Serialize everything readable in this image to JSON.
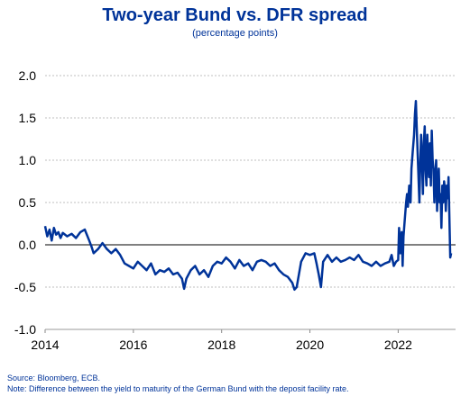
{
  "chart_data": {
    "type": "line",
    "title": "Two-year Bund vs. DFR spread",
    "subtitle": "(percentage points)",
    "xlabel": "",
    "ylabel": "",
    "xlim": [
      2014,
      2023.3
    ],
    "ylim": [
      -1.0,
      2.0
    ],
    "x_ticks": [
      2014,
      2016,
      2018,
      2020,
      2022
    ],
    "x_tick_labels": [
      "2014",
      "2016",
      "2018",
      "2020",
      "2022"
    ],
    "y_ticks": [
      2.0,
      1.5,
      1.0,
      0.5,
      0.0,
      -0.5,
      -1.0
    ],
    "y_tick_labels": [
      "2.0",
      "1.5",
      "1.0",
      "0.5",
      "0.0",
      "-0.5",
      "-1.0"
    ],
    "grid": "horizontal dashed",
    "legend": "none",
    "line_color": "#003399",
    "series": [
      {
        "x": [
          2014.0,
          2014.05,
          2014.1,
          2014.15,
          2014.2,
          2014.25,
          2014.3,
          2014.35,
          2014.4,
          2014.5,
          2014.6,
          2014.7,
          2014.8,
          2014.9,
          2015.0,
          2015.05,
          2015.1,
          2015.2,
          2015.3,
          2015.4,
          2015.5,
          2015.6,
          2015.7,
          2015.8,
          2015.9,
          2016.0,
          2016.1,
          2016.2,
          2016.3,
          2016.4,
          2016.5,
          2016.6,
          2016.7,
          2016.8,
          2016.9,
          2017.0,
          2017.1,
          2017.15,
          2017.2,
          2017.3,
          2017.4,
          2017.5,
          2017.6,
          2017.7,
          2017.8,
          2017.9,
          2018.0,
          2018.1,
          2018.2,
          2018.3,
          2018.4,
          2018.5,
          2018.6,
          2018.7,
          2018.8,
          2018.9,
          2019.0,
          2019.1,
          2019.2,
          2019.3,
          2019.4,
          2019.5,
          2019.6,
          2019.65,
          2019.7,
          2019.8,
          2019.9,
          2020.0,
          2020.1,
          2020.15,
          2020.2,
          2020.25,
          2020.3,
          2020.4,
          2020.5,
          2020.6,
          2020.7,
          2020.8,
          2020.9,
          2021.0,
          2021.1,
          2021.2,
          2021.3,
          2021.4,
          2021.5,
          2021.6,
          2021.7,
          2021.8,
          2021.85,
          2021.9,
          2021.95,
          2022.0,
          2022.02,
          2022.05,
          2022.08,
          2022.1,
          2022.12,
          2022.15,
          2022.18,
          2022.2,
          2022.22,
          2022.25,
          2022.28,
          2022.3,
          2022.33,
          2022.36,
          2022.38,
          2022.4,
          2022.42,
          2022.44,
          2022.46,
          2022.48,
          2022.5,
          2022.52,
          2022.54,
          2022.56,
          2022.58,
          2022.6,
          2022.62,
          2022.64,
          2022.66,
          2022.68,
          2022.7,
          2022.72,
          2022.74,
          2022.76,
          2022.78,
          2022.8,
          2022.82,
          2022.84,
          2022.86,
          2022.88,
          2022.9,
          2022.92,
          2022.94,
          2022.96,
          2022.98,
          2023.0,
          2023.02,
          2023.04,
          2023.06,
          2023.08,
          2023.1,
          2023.12,
          2023.14,
          2023.16,
          2023.18,
          2023.2
        ],
        "y": [
          0.22,
          0.1,
          0.18,
          0.05,
          0.2,
          0.12,
          0.15,
          0.08,
          0.14,
          0.1,
          0.13,
          0.08,
          0.15,
          0.18,
          0.05,
          -0.02,
          -0.1,
          -0.05,
          0.02,
          -0.05,
          -0.1,
          -0.05,
          -0.12,
          -0.22,
          -0.25,
          -0.28,
          -0.2,
          -0.25,
          -0.3,
          -0.22,
          -0.35,
          -0.3,
          -0.32,
          -0.28,
          -0.35,
          -0.33,
          -0.4,
          -0.52,
          -0.4,
          -0.3,
          -0.25,
          -0.35,
          -0.3,
          -0.38,
          -0.25,
          -0.2,
          -0.22,
          -0.15,
          -0.2,
          -0.28,
          -0.18,
          -0.25,
          -0.22,
          -0.3,
          -0.2,
          -0.18,
          -0.2,
          -0.25,
          -0.22,
          -0.3,
          -0.35,
          -0.38,
          -0.45,
          -0.53,
          -0.5,
          -0.2,
          -0.1,
          -0.12,
          -0.1,
          -0.22,
          -0.35,
          -0.5,
          -0.2,
          -0.12,
          -0.2,
          -0.15,
          -0.2,
          -0.18,
          -0.15,
          -0.18,
          -0.12,
          -0.2,
          -0.22,
          -0.25,
          -0.2,
          -0.25,
          -0.22,
          -0.2,
          -0.12,
          -0.25,
          -0.2,
          -0.18,
          0.2,
          -0.1,
          0.15,
          -0.25,
          0.1,
          0.3,
          0.5,
          0.6,
          0.45,
          0.7,
          0.5,
          0.9,
          1.1,
          1.3,
          1.55,
          1.7,
          1.4,
          1.1,
          0.8,
          0.5,
          1.0,
          1.3,
          1.0,
          0.6,
          1.2,
          1.4,
          0.9,
          0.7,
          1.3,
          1.0,
          0.8,
          1.2,
          0.7,
          1.35,
          1.0,
          0.9,
          0.5,
          0.8,
          1.0,
          0.4,
          0.7,
          0.9,
          0.5,
          0.6,
          0.2,
          0.7,
          0.5,
          0.75,
          0.65,
          0.4,
          0.7,
          0.55,
          0.8,
          0.3,
          -0.15,
          -0.1
        ]
      }
    ]
  },
  "footer": {
    "source": "Source: Bloomberg, ECB.",
    "note": "Note: Difference between the yield to maturity of the German Bund with the deposit facility rate."
  }
}
